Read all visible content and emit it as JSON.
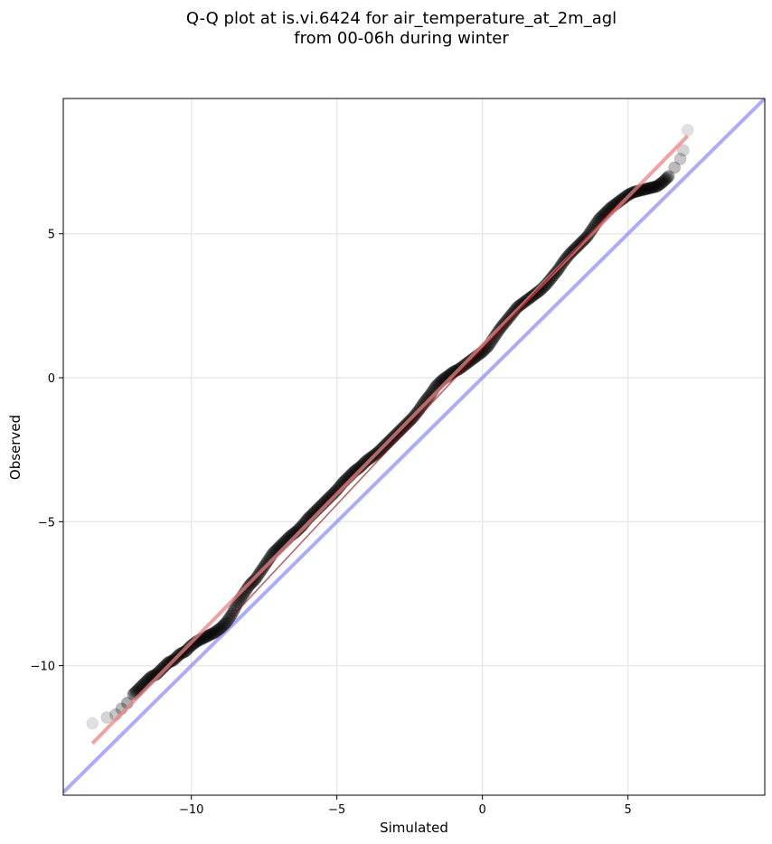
{
  "chart_data": {
    "type": "scatter",
    "title": "Q-Q plot at is.vi.6424 for air_temperature_at_2m_agl",
    "subtitle": "from 00-06h during winter",
    "xlabel": "Simulated",
    "ylabel": "Observed",
    "xlim": [
      -14.4,
      9.7
    ],
    "ylim": [
      -14.5,
      9.7
    ],
    "x_ticks": [
      -10,
      -5,
      0,
      5
    ],
    "y_ticks": [
      -10,
      -5,
      0,
      5
    ],
    "x_tick_labels": [
      "−10",
      "−5",
      "0",
      "5"
    ],
    "y_tick_labels": [
      "−10",
      "−5",
      "0",
      "5"
    ],
    "grid": true,
    "series": [
      {
        "kind": "quantiles",
        "color": "#000000",
        "points": [
          [
            -13.4,
            -12.0
          ],
          [
            -12.9,
            -11.8
          ],
          [
            -12.6,
            -11.7
          ],
          [
            -12.4,
            -11.5
          ],
          [
            -12.2,
            -11.3
          ],
          [
            -12.0,
            -11.0
          ],
          [
            -11.8,
            -10.8
          ],
          [
            -11.6,
            -10.6
          ],
          [
            -11.4,
            -10.4
          ],
          [
            -11.2,
            -10.3
          ],
          [
            -11.0,
            -10.1
          ],
          [
            -10.8,
            -9.9
          ],
          [
            -10.6,
            -9.8
          ],
          [
            -10.4,
            -9.6
          ],
          [
            -10.2,
            -9.5
          ],
          [
            -10.0,
            -9.3
          ],
          [
            -9.8,
            -9.15
          ],
          [
            -9.6,
            -9.05
          ],
          [
            -9.4,
            -8.95
          ],
          [
            -9.2,
            -8.85
          ],
          [
            -9.0,
            -8.7
          ],
          [
            -8.8,
            -8.5
          ],
          [
            -8.6,
            -8.2
          ],
          [
            -8.4,
            -7.8
          ],
          [
            -8.2,
            -7.5
          ],
          [
            -8.0,
            -7.2
          ],
          [
            -7.8,
            -7.0
          ],
          [
            -7.6,
            -6.7
          ],
          [
            -7.4,
            -6.4
          ],
          [
            -7.2,
            -6.1
          ],
          [
            -7.0,
            -5.9
          ],
          [
            -6.8,
            -5.7
          ],
          [
            -6.6,
            -5.5
          ],
          [
            -6.4,
            -5.35
          ],
          [
            -6.2,
            -5.15
          ],
          [
            -6.0,
            -4.9
          ],
          [
            -5.8,
            -4.7
          ],
          [
            -5.6,
            -4.5
          ],
          [
            -5.4,
            -4.3
          ],
          [
            -5.2,
            -4.1
          ],
          [
            -5.0,
            -3.9
          ],
          [
            -4.8,
            -3.65
          ],
          [
            -4.6,
            -3.45
          ],
          [
            -4.4,
            -3.25
          ],
          [
            -4.2,
            -3.1
          ],
          [
            -4.0,
            -2.9
          ],
          [
            -3.8,
            -2.75
          ],
          [
            -3.6,
            -2.6
          ],
          [
            -3.4,
            -2.4
          ],
          [
            -3.2,
            -2.2
          ],
          [
            -3.0,
            -2.0
          ],
          [
            -2.8,
            -1.8
          ],
          [
            -2.6,
            -1.6
          ],
          [
            -2.4,
            -1.4
          ],
          [
            -2.2,
            -1.15
          ],
          [
            -2.0,
            -0.85
          ],
          [
            -1.8,
            -0.6
          ],
          [
            -1.6,
            -0.3
          ],
          [
            -1.4,
            -0.1
          ],
          [
            -1.2,
            0.05
          ],
          [
            -1.0,
            0.2
          ],
          [
            -0.8,
            0.3
          ],
          [
            -0.6,
            0.45
          ],
          [
            -0.4,
            0.6
          ],
          [
            -0.2,
            0.75
          ],
          [
            0.0,
            0.9
          ],
          [
            0.2,
            1.1
          ],
          [
            0.4,
            1.4
          ],
          [
            0.6,
            1.7
          ],
          [
            0.8,
            1.95
          ],
          [
            1.0,
            2.2
          ],
          [
            1.2,
            2.45
          ],
          [
            1.4,
            2.6
          ],
          [
            1.6,
            2.75
          ],
          [
            1.8,
            2.9
          ],
          [
            2.0,
            3.05
          ],
          [
            2.2,
            3.25
          ],
          [
            2.4,
            3.5
          ],
          [
            2.6,
            3.75
          ],
          [
            2.8,
            4.05
          ],
          [
            3.0,
            4.3
          ],
          [
            3.2,
            4.5
          ],
          [
            3.4,
            4.7
          ],
          [
            3.6,
            4.9
          ],
          [
            3.8,
            5.2
          ],
          [
            4.0,
            5.5
          ],
          [
            4.2,
            5.7
          ],
          [
            4.4,
            5.9
          ],
          [
            4.6,
            6.05
          ],
          [
            4.8,
            6.2
          ],
          [
            5.0,
            6.35
          ],
          [
            5.2,
            6.45
          ],
          [
            5.4,
            6.5
          ],
          [
            5.6,
            6.55
          ],
          [
            5.8,
            6.6
          ],
          [
            6.0,
            6.65
          ],
          [
            6.2,
            6.8
          ],
          [
            6.4,
            7.0
          ],
          [
            6.6,
            7.3
          ],
          [
            6.8,
            7.6
          ],
          [
            6.9,
            7.9
          ],
          [
            7.05,
            8.6
          ]
        ]
      },
      {
        "kind": "fit-line",
        "color": "#f08080",
        "points": [
          [
            -13.4,
            -12.7
          ],
          [
            7.05,
            8.4
          ]
        ]
      },
      {
        "kind": "identity-line",
        "color": "#8080ff",
        "points": [
          [
            -14.4,
            -14.4
          ],
          [
            9.7,
            9.7
          ]
        ]
      }
    ]
  }
}
